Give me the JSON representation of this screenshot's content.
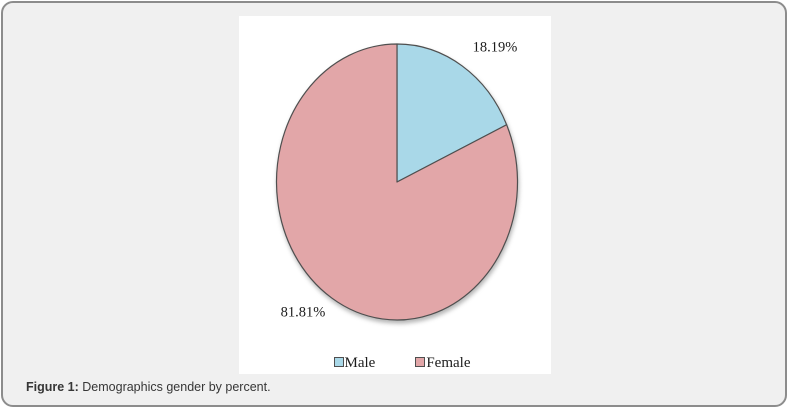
{
  "frame": {
    "background": "#f0f0f0",
    "border_color": "#8c8c8c",
    "panel_background": "#ffffff"
  },
  "caption": {
    "prefix": "Figure 1:",
    "text": " Demographics gender by percent."
  },
  "chart_data": {
    "type": "pie",
    "title": "",
    "categories": [
      "Male",
      "Female"
    ],
    "values": [
      18.19,
      81.81
    ],
    "labels": [
      "18.19%",
      "81.81%"
    ],
    "colors": [
      "#a9d8e8",
      "#e2a6a8"
    ],
    "stroke_color": "#4f4f4f",
    "start_angle_deg": 0,
    "direction": "clockwise",
    "legend_position": "bottom",
    "label_font": "serif"
  }
}
